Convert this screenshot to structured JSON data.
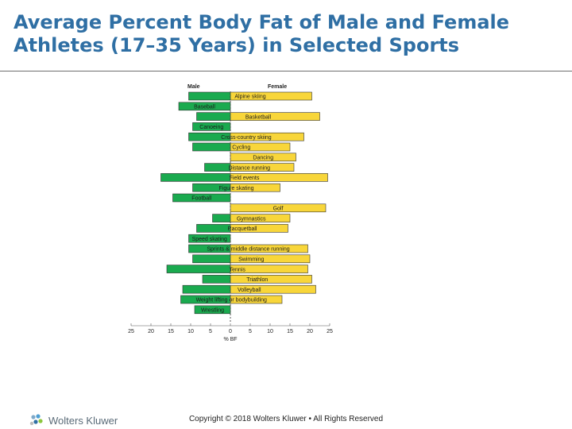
{
  "title": "Average Percent Body Fat of Male and Female Athletes (17–35 Years) in Selected Sports",
  "chart_data": {
    "type": "bar",
    "orientation": "horizontal-diverging",
    "title": "",
    "xlabel": "% BF",
    "xlim": [
      -25,
      25
    ],
    "x_ticks": [
      -25,
      -20,
      -15,
      -10,
      -5,
      0,
      5,
      10,
      15,
      20,
      25
    ],
    "x_tick_labels": [
      "25",
      "20",
      "15",
      "10",
      "5",
      "0",
      "5",
      "10",
      "15",
      "20",
      "25"
    ],
    "legend": [
      "Male",
      "Female"
    ],
    "colors": {
      "male": "#1aaa4f",
      "female": "#f8d63a",
      "axis": "#555555"
    },
    "categories": [
      "Alpine skiing",
      "Baseball",
      "Basketball",
      "Canoeing",
      "Cross-country skiing",
      "Cycling",
      "Dancing",
      "Distance running",
      "Field events",
      "Figure skating",
      "Football",
      "Golf",
      "Gymnastics",
      "Racquetball",
      "Speed skating",
      "Sprints & middle distance running",
      "Swimming",
      "Tennis",
      "Triathlon",
      "Volleyball",
      "Weight lifting or bodybuilding",
      "Wrestling"
    ],
    "series": [
      {
        "name": "Male",
        "values": [
          10.5,
          13,
          8.5,
          9.5,
          10.5,
          9.5,
          0,
          6.5,
          17.5,
          9.5,
          14.5,
          0,
          4.5,
          8.5,
          10.5,
          10.5,
          9.5,
          16,
          7,
          12,
          12.5,
          9
        ]
      },
      {
        "name": "Female",
        "values": [
          20.5,
          0,
          22.5,
          0,
          18.5,
          15,
          16.5,
          16,
          24.5,
          12.5,
          0,
          24,
          15,
          14.5,
          0,
          19.5,
          20,
          19.5,
          20.5,
          21.5,
          13,
          0
        ]
      }
    ]
  },
  "footer": {
    "logo_text": "Wolters Kluwer",
    "logo_icon": "wolters-kluwer-logo-icon",
    "copyright": "Copyright © 2018 Wolters Kluwer • All Rights Reserved"
  }
}
